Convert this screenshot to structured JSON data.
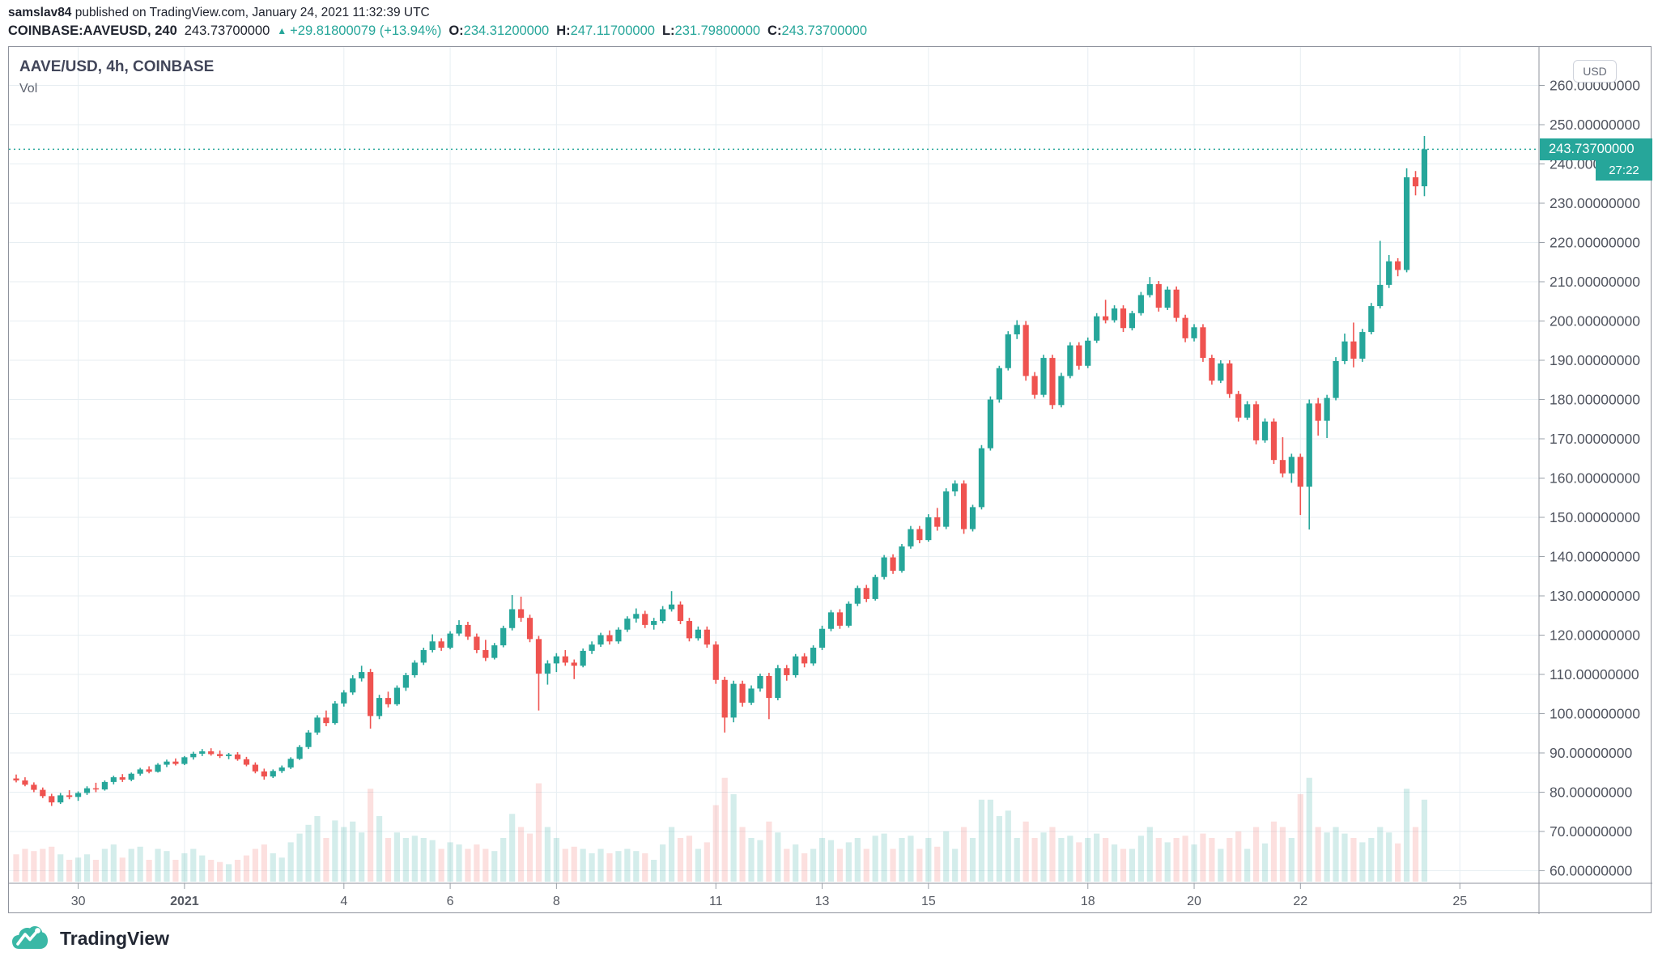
{
  "header": {
    "author": "samslav84",
    "byline_rest": " published on TradingView.com, January 24, 2021 11:32:39 UTC",
    "symbol": "COINBASE:AAVEUSD, 240",
    "last_price_text": "243.73700000",
    "up_triangle": "▲",
    "change_text": "+29.81800079 (+13.94%)",
    "o_label": "O:",
    "o_value": "234.31200000",
    "h_label": "H:",
    "h_value": "247.11700000",
    "l_label": "L:",
    "l_value": "231.79800000",
    "c_label": "C:",
    "c_value": "243.73700000"
  },
  "legend": {
    "title": "AAVE/USD, 4h, COINBASE",
    "indicator": "Vol"
  },
  "axis": {
    "currency_button": "USD",
    "last_price_label": "243.73700000",
    "countdown": "27:22"
  },
  "footer": {
    "brand": "TradingView"
  },
  "colors": {
    "up": "#26a69a",
    "down": "#ef5350",
    "vol_up": "rgba(38,166,154,0.2)",
    "vol_down": "rgba(239,83,80,0.18)",
    "grid": "#e7eef2",
    "frame": "#8f939d",
    "axis_text": "#50545f",
    "time_text": "#555962",
    "last_line": "#26a69a",
    "label_bg": "#26a69a"
  },
  "chart_data": {
    "type": "candlestick_with_volume",
    "title": "AAVE/USD, 4h, COINBASE",
    "symbol": "AAVE/USD",
    "interval": "4h",
    "exchange": "COINBASE",
    "currency": "USD",
    "last_price": 243.737,
    "last_candle": {
      "open": 234.312,
      "high": 247.117,
      "low": 231.798,
      "close": 243.737
    },
    "visible_price_range": [
      56.8,
      269.9
    ],
    "bar_interval_hours": 4,
    "first_bar_time": "2020-12-28 20:00 UTC",
    "last_bar_time": "2021-01-24 08:00 UTC",
    "grid": true,
    "price_axis_ticks": [
      {
        "v": 260,
        "label": "260.00000000"
      },
      {
        "v": 250,
        "label": "250.00000000"
      },
      {
        "v": 240,
        "label": "240.00000000"
      },
      {
        "v": 230,
        "label": "230.00000000"
      },
      {
        "v": 220,
        "label": "220.00000000"
      },
      {
        "v": 210,
        "label": "210.00000000"
      },
      {
        "v": 200,
        "label": "200.00000000"
      },
      {
        "v": 190,
        "label": "190.00000000"
      },
      {
        "v": 180,
        "label": "180.00000000"
      },
      {
        "v": 170,
        "label": "170.00000000"
      },
      {
        "v": 160,
        "label": "160.00000000"
      },
      {
        "v": 150,
        "label": "150.00000000"
      },
      {
        "v": 140,
        "label": "140.00000000"
      },
      {
        "v": 130,
        "label": "130.00000000"
      },
      {
        "v": 120,
        "label": "120.00000000"
      },
      {
        "v": 110,
        "label": "110.00000000"
      },
      {
        "v": 100,
        "label": "100.00000000"
      },
      {
        "v": 90,
        "label": "90.00000000"
      },
      {
        "v": 80,
        "label": "80.00000000"
      },
      {
        "v": 70,
        "label": "70.00000000"
      },
      {
        "v": 60,
        "label": "60.00000000"
      }
    ],
    "time_axis_ticks": [
      {
        "label": "30",
        "d": 0
      },
      {
        "label": "2021",
        "d": 2,
        "bold": true
      },
      {
        "label": "4",
        "d": 5
      },
      {
        "label": "6",
        "d": 7
      },
      {
        "label": "8",
        "d": 9
      },
      {
        "label": "11",
        "d": 12
      },
      {
        "label": "13",
        "d": 14
      },
      {
        "label": "15",
        "d": 16
      },
      {
        "label": "18",
        "d": 19
      },
      {
        "label": "20",
        "d": 21
      },
      {
        "label": "22",
        "d": 23
      },
      {
        "label": "25",
        "d": 26
      }
    ],
    "candles_format": [
      "open",
      "high",
      "low",
      "close",
      "relative_volume"
    ],
    "candles": [
      [
        83.5,
        84.5,
        82.5,
        83.0,
        0.25
      ],
      [
        83.0,
        83.8,
        81.5,
        81.9,
        0.3
      ],
      [
        81.9,
        82.5,
        80.0,
        80.6,
        0.28
      ],
      [
        80.6,
        81.2,
        78.5,
        79.0,
        0.3
      ],
      [
        79.0,
        79.6,
        76.5,
        77.4,
        0.32
      ],
      [
        77.4,
        79.8,
        77.0,
        79.2,
        0.25
      ],
      [
        79.2,
        80.5,
        78.2,
        78.8,
        0.2
      ],
      [
        78.8,
        80.2,
        77.8,
        79.8,
        0.22
      ],
      [
        79.8,
        81.5,
        79.3,
        81.0,
        0.25
      ],
      [
        81.0,
        82.4,
        80.0,
        80.7,
        0.2
      ],
      [
        80.7,
        83.0,
        80.4,
        82.6,
        0.3
      ],
      [
        82.6,
        84.2,
        82.0,
        83.8,
        0.34
      ],
      [
        83.8,
        84.6,
        82.6,
        83.2,
        0.22
      ],
      [
        83.2,
        85.0,
        82.8,
        84.7,
        0.3
      ],
      [
        84.7,
        86.2,
        84.2,
        85.8,
        0.32
      ],
      [
        85.8,
        86.6,
        84.8,
        85.2,
        0.2
      ],
      [
        85.2,
        87.4,
        85.0,
        87.0,
        0.3
      ],
      [
        87.0,
        88.3,
        86.4,
        87.8,
        0.28
      ],
      [
        87.8,
        88.6,
        86.8,
        87.2,
        0.2
      ],
      [
        87.2,
        89.2,
        86.9,
        88.9,
        0.26
      ],
      [
        88.9,
        90.3,
        88.3,
        89.8,
        0.3
      ],
      [
        89.8,
        91.0,
        89.2,
        90.4,
        0.24
      ],
      [
        90.4,
        91.2,
        89.3,
        89.7,
        0.2
      ],
      [
        89.7,
        90.6,
        88.7,
        89.2,
        0.18
      ],
      [
        89.2,
        90.0,
        88.4,
        89.6,
        0.16
      ],
      [
        89.6,
        90.2,
        88.0,
        88.4,
        0.2
      ],
      [
        88.4,
        89.0,
        86.6,
        87.0,
        0.24
      ],
      [
        87.0,
        87.6,
        84.8,
        85.3,
        0.3
      ],
      [
        85.3,
        86.0,
        83.2,
        84.0,
        0.34
      ],
      [
        84.0,
        85.8,
        83.6,
        85.4,
        0.26
      ],
      [
        85.4,
        86.8,
        84.9,
        86.3,
        0.22
      ],
      [
        86.3,
        88.9,
        85.9,
        88.5,
        0.36
      ],
      [
        88.5,
        92.0,
        88.2,
        91.5,
        0.44
      ],
      [
        91.5,
        95.8,
        91.0,
        95.2,
        0.52
      ],
      [
        95.2,
        99.6,
        94.6,
        99.0,
        0.6
      ],
      [
        99.0,
        100.8,
        96.8,
        97.6,
        0.4
      ],
      [
        97.6,
        103.2,
        97.2,
        102.6,
        0.56
      ],
      [
        102.6,
        106.0,
        101.8,
        105.4,
        0.5
      ],
      [
        105.4,
        109.8,
        104.8,
        109.0,
        0.55
      ],
      [
        109.0,
        112.2,
        108.2,
        110.6,
        0.45
      ],
      [
        110.6,
        111.4,
        96.2,
        99.4,
        0.85
      ],
      [
        99.4,
        104.8,
        98.6,
        104.0,
        0.6
      ],
      [
        104.0,
        105.6,
        101.6,
        102.4,
        0.4
      ],
      [
        102.4,
        107.2,
        102.0,
        106.6,
        0.45
      ],
      [
        106.6,
        110.4,
        105.8,
        109.8,
        0.4
      ],
      [
        109.8,
        113.6,
        109.2,
        113.0,
        0.42
      ],
      [
        113.0,
        116.8,
        112.4,
        116.2,
        0.4
      ],
      [
        116.2,
        120.2,
        115.6,
        118.4,
        0.38
      ],
      [
        118.4,
        119.2,
        116.0,
        116.8,
        0.3
      ],
      [
        116.8,
        121.0,
        116.4,
        120.4,
        0.36
      ],
      [
        120.4,
        123.8,
        119.8,
        122.6,
        0.34
      ],
      [
        122.6,
        123.4,
        118.8,
        119.6,
        0.3
      ],
      [
        119.6,
        120.4,
        115.4,
        116.2,
        0.34
      ],
      [
        116.2,
        118.8,
        113.4,
        114.2,
        0.3
      ],
      [
        114.2,
        118.0,
        113.8,
        117.4,
        0.28
      ],
      [
        117.4,
        122.4,
        116.9,
        121.8,
        0.4
      ],
      [
        121.8,
        130.2,
        121.2,
        126.6,
        0.62
      ],
      [
        126.6,
        129.8,
        123.4,
        124.4,
        0.5
      ],
      [
        124.4,
        125.2,
        118.2,
        119.0,
        0.44
      ],
      [
        119.0,
        119.8,
        100.8,
        110.2,
        0.9
      ],
      [
        110.2,
        113.6,
        107.4,
        112.8,
        0.5
      ],
      [
        112.8,
        115.4,
        110.6,
        114.6,
        0.4
      ],
      [
        114.6,
        116.2,
        112.2,
        113.0,
        0.3
      ],
      [
        113.0,
        113.8,
        108.8,
        112.2,
        0.32
      ],
      [
        112.2,
        116.6,
        111.8,
        116.0,
        0.3
      ],
      [
        116.0,
        118.4,
        115.2,
        117.6,
        0.26
      ],
      [
        117.6,
        120.6,
        117.0,
        120.0,
        0.3
      ],
      [
        120.0,
        121.2,
        117.6,
        118.4,
        0.26
      ],
      [
        118.4,
        122.0,
        117.8,
        121.4,
        0.28
      ],
      [
        121.4,
        124.8,
        120.8,
        124.2,
        0.3
      ],
      [
        124.2,
        126.8,
        123.2,
        125.4,
        0.28
      ],
      [
        125.4,
        126.2,
        121.8,
        122.6,
        0.26
      ],
      [
        122.6,
        124.4,
        121.4,
        123.6,
        0.2
      ],
      [
        123.6,
        127.4,
        123.0,
        126.6,
        0.34
      ],
      [
        126.6,
        131.2,
        126.0,
        127.8,
        0.5
      ],
      [
        127.8,
        128.6,
        122.8,
        123.6,
        0.4
      ],
      [
        123.6,
        124.4,
        118.4,
        119.2,
        0.42
      ],
      [
        119.2,
        122.2,
        118.6,
        121.4,
        0.3
      ],
      [
        121.4,
        122.2,
        116.8,
        117.6,
        0.36
      ],
      [
        117.6,
        118.4,
        107.6,
        108.6,
        0.7
      ],
      [
        108.6,
        109.4,
        95.2,
        99.0,
        0.95
      ],
      [
        99.0,
        108.4,
        97.8,
        107.6,
        0.8
      ],
      [
        107.6,
        108.4,
        101.8,
        102.8,
        0.5
      ],
      [
        102.8,
        107.2,
        102.2,
        106.4,
        0.4
      ],
      [
        106.4,
        110.2,
        105.6,
        109.6,
        0.38
      ],
      [
        109.6,
        110.4,
        98.6,
        104.0,
        0.55
      ],
      [
        104.0,
        112.4,
        103.4,
        111.6,
        0.45
      ],
      [
        111.6,
        112.4,
        108.4,
        109.8,
        0.3
      ],
      [
        109.8,
        115.2,
        109.2,
        114.6,
        0.34
      ],
      [
        114.6,
        115.4,
        111.8,
        112.8,
        0.26
      ],
      [
        112.8,
        117.4,
        112.2,
        116.8,
        0.3
      ],
      [
        116.8,
        122.4,
        116.2,
        121.6,
        0.4
      ],
      [
        121.6,
        126.4,
        121.0,
        125.8,
        0.38
      ],
      [
        125.8,
        126.6,
        121.6,
        122.4,
        0.3
      ],
      [
        122.4,
        128.6,
        121.9,
        128.0,
        0.36
      ],
      [
        128.0,
        132.6,
        127.4,
        132.0,
        0.4
      ],
      [
        132.0,
        132.8,
        128.4,
        129.2,
        0.3
      ],
      [
        129.2,
        135.4,
        128.8,
        134.8,
        0.42
      ],
      [
        134.8,
        140.4,
        134.2,
        139.8,
        0.44
      ],
      [
        139.8,
        140.6,
        135.6,
        136.4,
        0.3
      ],
      [
        136.4,
        143.2,
        135.9,
        142.6,
        0.4
      ],
      [
        142.6,
        147.8,
        142.0,
        147.0,
        0.42
      ],
      [
        147.0,
        147.8,
        143.4,
        144.2,
        0.3
      ],
      [
        144.2,
        150.8,
        143.8,
        150.0,
        0.4
      ],
      [
        150.0,
        152.4,
        146.6,
        147.6,
        0.32
      ],
      [
        147.6,
        157.4,
        147.0,
        156.6,
        0.46
      ],
      [
        156.6,
        159.4,
        155.4,
        158.6,
        0.3
      ],
      [
        158.6,
        159.4,
        145.8,
        147.0,
        0.5
      ],
      [
        147.0,
        153.2,
        146.4,
        152.6,
        0.4
      ],
      [
        152.6,
        168.4,
        152.0,
        167.6,
        0.75
      ],
      [
        167.6,
        180.8,
        167.0,
        180.0,
        0.75
      ],
      [
        180.0,
        188.6,
        179.2,
        188.0,
        0.6
      ],
      [
        188.0,
        197.4,
        187.4,
        196.6,
        0.65
      ],
      [
        196.6,
        200.2,
        195.4,
        199.0,
        0.4
      ],
      [
        199.0,
        200.0,
        184.8,
        186.0,
        0.55
      ],
      [
        186.0,
        187.0,
        180.2,
        181.2,
        0.4
      ],
      [
        181.2,
        191.4,
        180.6,
        190.6,
        0.45
      ],
      [
        190.6,
        191.4,
        177.6,
        178.6,
        0.5
      ],
      [
        178.6,
        186.8,
        178.0,
        186.0,
        0.4
      ],
      [
        186.0,
        194.6,
        185.4,
        193.8,
        0.42
      ],
      [
        193.8,
        194.6,
        187.6,
        188.6,
        0.36
      ],
      [
        188.6,
        195.8,
        188.0,
        195.0,
        0.4
      ],
      [
        195.0,
        202.0,
        194.4,
        201.2,
        0.44
      ],
      [
        201.2,
        205.4,
        199.4,
        200.2,
        0.4
      ],
      [
        200.2,
        204.0,
        199.6,
        203.2,
        0.34
      ],
      [
        203.2,
        204.0,
        197.2,
        198.2,
        0.3
      ],
      [
        198.2,
        202.6,
        197.6,
        202.0,
        0.3
      ],
      [
        202.0,
        207.4,
        201.4,
        206.6,
        0.42
      ],
      [
        206.6,
        211.2,
        206.0,
        209.4,
        0.5
      ],
      [
        209.4,
        210.2,
        202.4,
        203.4,
        0.4
      ],
      [
        203.4,
        208.8,
        202.8,
        208.0,
        0.36
      ],
      [
        208.0,
        208.8,
        199.8,
        200.8,
        0.4
      ],
      [
        200.8,
        201.6,
        194.6,
        195.6,
        0.42
      ],
      [
        195.6,
        199.2,
        194.8,
        198.4,
        0.34
      ],
      [
        198.4,
        199.2,
        189.6,
        190.6,
        0.44
      ],
      [
        190.6,
        191.4,
        183.8,
        184.8,
        0.4
      ],
      [
        184.8,
        190.0,
        184.2,
        189.2,
        0.3
      ],
      [
        189.2,
        190.0,
        180.4,
        181.4,
        0.4
      ],
      [
        181.4,
        182.2,
        174.4,
        175.4,
        0.46
      ],
      [
        175.4,
        179.6,
        174.8,
        178.8,
        0.3
      ],
      [
        178.8,
        179.6,
        168.6,
        169.6,
        0.5
      ],
      [
        169.6,
        175.2,
        169.0,
        174.4,
        0.35
      ],
      [
        174.4,
        175.2,
        163.6,
        164.6,
        0.55
      ],
      [
        164.6,
        170.4,
        160.2,
        161.2,
        0.5
      ],
      [
        161.2,
        166.2,
        158.8,
        165.4,
        0.4
      ],
      [
        165.4,
        166.2,
        150.6,
        157.8,
        0.8
      ],
      [
        157.8,
        180.0,
        146.9,
        179.0,
        0.95
      ],
      [
        179.0,
        180.4,
        170.8,
        174.6,
        0.5
      ],
      [
        174.6,
        181.2,
        170.2,
        180.4,
        0.45
      ],
      [
        180.4,
        190.8,
        179.8,
        189.8,
        0.5
      ],
      [
        189.8,
        196.8,
        189.0,
        194.8,
        0.44
      ],
      [
        194.8,
        199.6,
        188.2,
        190.4,
        0.4
      ],
      [
        190.4,
        198.0,
        189.6,
        197.2,
        0.36
      ],
      [
        197.2,
        204.6,
        196.6,
        203.8,
        0.4
      ],
      [
        203.8,
        220.4,
        203.2,
        209.2,
        0.5
      ],
      [
        209.2,
        216.8,
        208.4,
        215.2,
        0.45
      ],
      [
        215.2,
        216.0,
        211.4,
        213.0,
        0.35
      ],
      [
        213.0,
        238.9,
        212.4,
        236.6,
        0.85
      ],
      [
        236.6,
        238.2,
        232.0,
        234.3,
        0.5
      ],
      [
        234.312,
        247.117,
        231.798,
        243.737,
        0.75
      ]
    ]
  }
}
